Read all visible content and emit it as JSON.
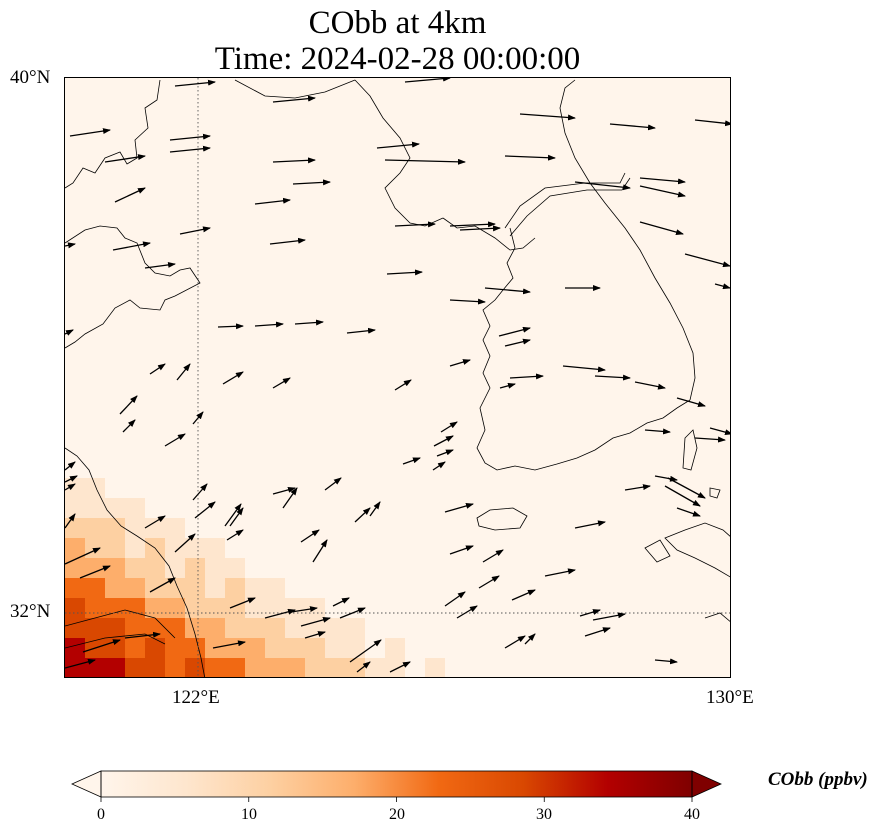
{
  "title": {
    "line1": "CObb at 4km",
    "line2": "Time: 2024-02-28 00:00:00"
  },
  "map": {
    "lat_labels": [
      "40°N",
      "32°N"
    ],
    "lon_labels": [
      "122°E",
      "130°E"
    ],
    "extent": {
      "lon_min": 120,
      "lon_max": 130,
      "lat_min": 31,
      "lat_max": 40
    },
    "gridlines": {
      "lons": [
        122
      ],
      "lats": [
        32
      ],
      "style": "dotted"
    },
    "field": "CObb concentration, high (red) in the south-west corner over the Yangtze River delta, near zero elsewhere",
    "wind_vectors": "westerly / south-westerly winds across the domain"
  },
  "colorbar": {
    "label": "CObb (ppbv)",
    "ticks": [
      "0",
      "10",
      "20",
      "30",
      "40"
    ],
    "min": 0,
    "max": 40,
    "colormap": "OrRd",
    "colors": [
      "#fff5eb",
      "#fee6ce",
      "#fdd0a2",
      "#fdae6b",
      "#f16913",
      "#d94801",
      "#b30000",
      "#7f0000"
    ],
    "extend": "both"
  }
}
